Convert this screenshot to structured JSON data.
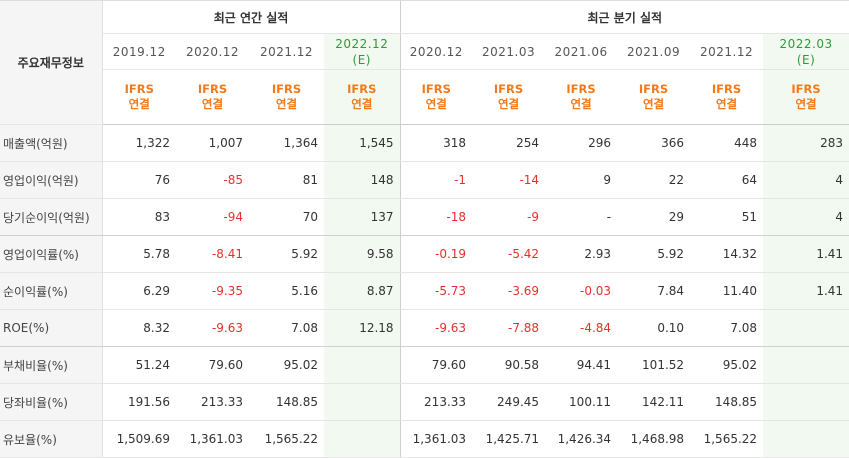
{
  "header": {
    "title": "주요재무정보",
    "annual_group": "최근 연간 실적",
    "quarter_group": "최근 분기 실적",
    "periods": [
      {
        "label": "2019.12",
        "est": ""
      },
      {
        "label": "2020.12",
        "est": ""
      },
      {
        "label": "2021.12",
        "est": ""
      },
      {
        "label": "2022.12",
        "est": "(E)"
      },
      {
        "label": "2020.12",
        "est": ""
      },
      {
        "label": "2021.03",
        "est": ""
      },
      {
        "label": "2021.06",
        "est": ""
      },
      {
        "label": "2021.09",
        "est": ""
      },
      {
        "label": "2021.12",
        "est": ""
      },
      {
        "label": "2022.03",
        "est": "(E)"
      }
    ],
    "ifrs_line1": "IFRS",
    "ifrs_line2": "연결"
  },
  "rows": [
    {
      "label": "매출액(억원)",
      "values": [
        "1,322",
        "1,007",
        "1,364",
        "1,545",
        "318",
        "254",
        "296",
        "366",
        "448",
        "283"
      ]
    },
    {
      "label": "영업이익(억원)",
      "values": [
        "76",
        "-85",
        "81",
        "148",
        "-1",
        "-14",
        "9",
        "22",
        "64",
        "4"
      ]
    },
    {
      "label": "당기순이익(억원)",
      "values": [
        "83",
        "-94",
        "70",
        "137",
        "-18",
        "-9",
        "-",
        "29",
        "51",
        "4"
      ]
    },
    {
      "label": "영업이익률(%)",
      "values": [
        "5.78",
        "-8.41",
        "5.92",
        "9.58",
        "-0.19",
        "-5.42",
        "2.93",
        "5.92",
        "14.32",
        "1.41"
      ]
    },
    {
      "label": "순이익률(%)",
      "values": [
        "6.29",
        "-9.35",
        "5.16",
        "8.87",
        "-5.73",
        "-3.69",
        "-0.03",
        "7.84",
        "11.40",
        "1.41"
      ]
    },
    {
      "label": "ROE(%)",
      "values": [
        "8.32",
        "-9.63",
        "7.08",
        "12.18",
        "-9.63",
        "-7.88",
        "-4.84",
        "0.10",
        "7.08",
        ""
      ]
    },
    {
      "label": "부채비율(%)",
      "values": [
        "51.24",
        "79.60",
        "95.02",
        "",
        "79.60",
        "90.58",
        "94.41",
        "101.52",
        "95.02",
        ""
      ]
    },
    {
      "label": "당좌비율(%)",
      "values": [
        "191.56",
        "213.33",
        "148.85",
        "",
        "213.33",
        "249.45",
        "100.11",
        "142.11",
        "148.85",
        ""
      ]
    },
    {
      "label": "유보율(%)",
      "values": [
        "1,509.69",
        "1,361.03",
        "1,565.22",
        "",
        "1,361.03",
        "1,425.71",
        "1,426.34",
        "1,468.98",
        "1,565.22",
        ""
      ]
    }
  ],
  "colors": {
    "negative": "#e3312d",
    "ifrs": "#f07b1e",
    "estimate_bg": "#f2f9f0",
    "estimate_text": "#2e9b3a"
  }
}
